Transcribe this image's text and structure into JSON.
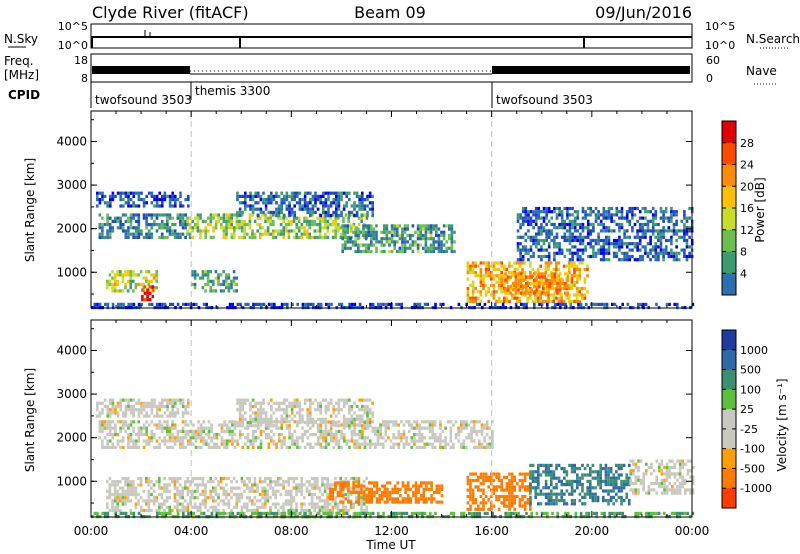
{
  "header": {
    "station": "Clyde River (fitACF)",
    "beam": "Beam 09",
    "date": "09/Jun/2016"
  },
  "panels": {
    "nsky_label": "N.Sky",
    "nsky_ticks": [
      "10^5",
      "10^0"
    ],
    "nsearch_label": "N.Search",
    "nsearch_ticks": [
      "10^5",
      "10^0"
    ],
    "freq_label_1": "Freq.",
    "freq_label_2": "[MHz]",
    "freq_ticks": [
      "18",
      "8"
    ],
    "nave_label": "Nave",
    "nave_ticks": [
      "60",
      "0"
    ],
    "cpid_label": "CPID"
  },
  "cpid_segments": [
    {
      "name": "twofsound 3503",
      "start_hour": 0
    },
    {
      "name": "themis 3300",
      "start_hour": 4
    },
    {
      "name": "twofsound 3503",
      "start_hour": 16
    }
  ],
  "power_colorbar": {
    "label": "Power [dB]",
    "ticks": [
      "28",
      "24",
      "20",
      "16",
      "12",
      "8",
      "4"
    ],
    "colors": [
      "#e00000",
      "#ff4a00",
      "#ff8c00",
      "#ffc000",
      "#c8dc28",
      "#6cbe50",
      "#3c9c6e",
      "#2c6eae",
      "#1e46c8",
      "#0000f0"
    ]
  },
  "velocity_colorbar": {
    "label": "Velocity [m s⁻¹]",
    "ticks": [
      "1000",
      "500",
      "100",
      "25",
      "-25",
      "-100",
      "-500",
      "-1000"
    ],
    "colors": [
      "#1e3ca0",
      "#2c6aa8",
      "#3c9070",
      "#5cc03c",
      "#c8c8c0",
      "#c8c8c0",
      "#ffa000",
      "#ff7a00",
      "#ff3c00",
      "#e00000"
    ]
  },
  "chart_data": [
    {
      "type": "heatmap",
      "title": "Power",
      "xlabel": "",
      "ylabel": "Slant Range [km]",
      "x_ticks": [
        "00:00",
        "04:00",
        "08:00",
        "12:00",
        "16:00",
        "20:00",
        "00:00"
      ],
      "y_ticks": [
        "1000",
        "2000",
        "3000",
        "4000"
      ],
      "xlim": [
        0,
        24
      ],
      "ylim": [
        180,
        4700
      ],
      "bands": [
        {
          "t0": 0.2,
          "t1": 3.9,
          "r0": 2500,
          "r1": 2850,
          "v": 6
        },
        {
          "t0": 0.3,
          "t1": 3.8,
          "r0": 1800,
          "r1": 2350,
          "v": 10
        },
        {
          "t0": 3.8,
          "t1": 11.0,
          "r0": 1800,
          "r1": 2350,
          "v": 16
        },
        {
          "t0": 5.8,
          "t1": 11.2,
          "r0": 2300,
          "r1": 2850,
          "v": 8
        },
        {
          "t0": 10.0,
          "t1": 14.5,
          "r0": 1500,
          "r1": 2100,
          "v": 12
        },
        {
          "t0": 0.6,
          "t1": 2.6,
          "r0": 550,
          "r1": 1050,
          "v": 18
        },
        {
          "t0": 4.0,
          "t1": 5.8,
          "r0": 600,
          "r1": 1050,
          "v": 12
        },
        {
          "t0": 15.0,
          "t1": 19.8,
          "r0": 350,
          "r1": 1250,
          "v": 22
        },
        {
          "t0": 17.0,
          "t1": 24.0,
          "r0": 1300,
          "r1": 2500,
          "v": 8
        },
        {
          "t0": 0.0,
          "t1": 24.0,
          "r0": 180,
          "r1": 300,
          "v": 6
        }
      ],
      "hotspots": [
        {
          "t0": 2.0,
          "t1": 2.5,
          "r0": 350,
          "r1": 700,
          "v": 30
        },
        {
          "t0": 16.5,
          "t1": 19.0,
          "r0": 550,
          "r1": 1000,
          "v": 24
        }
      ]
    },
    {
      "type": "heatmap",
      "title": "Velocity",
      "xlabel": "Time UT",
      "ylabel": "Slant Range [km]",
      "x_ticks": [
        "00:00",
        "04:00",
        "08:00",
        "12:00",
        "16:00",
        "20:00",
        "00:00"
      ],
      "y_ticks": [
        "1000",
        "2000",
        "3000",
        "4000"
      ],
      "xlim": [
        0,
        24
      ],
      "ylim": [
        180,
        4700
      ],
      "bands": [
        {
          "t0": 0.2,
          "t1": 3.9,
          "r0": 2500,
          "r1": 2900,
          "v": 0
        },
        {
          "t0": 0.3,
          "t1": 16.0,
          "r0": 1800,
          "r1": 2400,
          "v": 0
        },
        {
          "t0": 5.8,
          "t1": 11.2,
          "r0": 2300,
          "r1": 2900,
          "v": 0
        },
        {
          "t0": 0.6,
          "t1": 4.0,
          "r0": 300,
          "r1": 1100,
          "v": 0
        },
        {
          "t0": 4.0,
          "t1": 11.0,
          "r0": 200,
          "r1": 1100,
          "v": 0
        },
        {
          "t0": 9.5,
          "t1": 14.0,
          "r0": 550,
          "r1": 1000,
          "v": -300
        },
        {
          "t0": 15.0,
          "t1": 17.5,
          "r0": 350,
          "r1": 1200,
          "v": -300
        },
        {
          "t0": 17.5,
          "t1": 21.5,
          "r0": 500,
          "r1": 1400,
          "v": 300
        },
        {
          "t0": 21.5,
          "t1": 24.0,
          "r0": 700,
          "r1": 1500,
          "v": 0
        },
        {
          "t0": 0.0,
          "t1": 24.0,
          "r0": 180,
          "r1": 300,
          "v": 60
        }
      ],
      "hotspots": []
    }
  ]
}
